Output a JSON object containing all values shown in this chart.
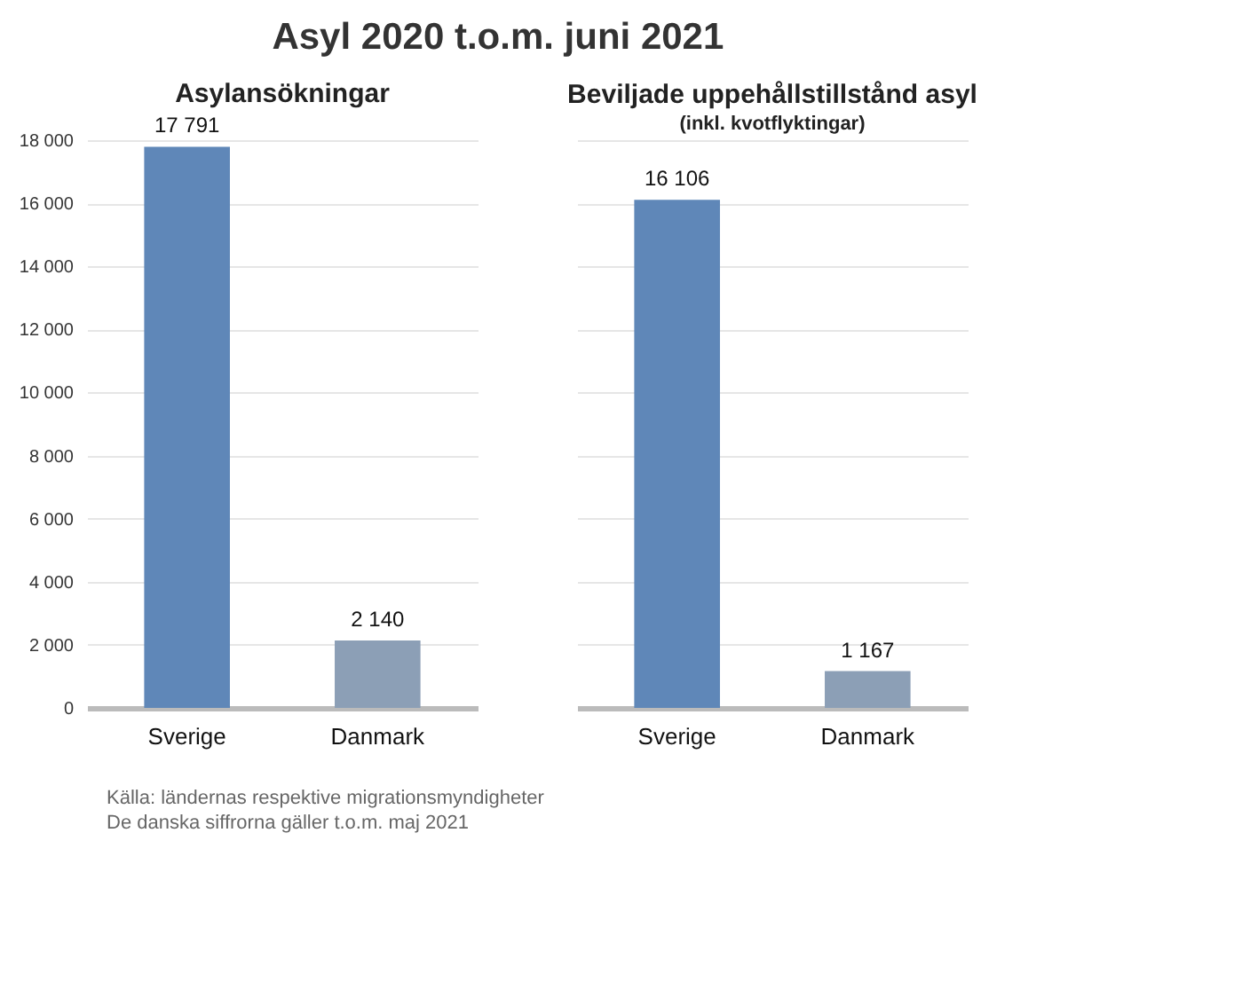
{
  "chart_data": [
    {
      "type": "bar",
      "title": "Asyl 2020 t.o.m. juni 2021",
      "subtitle": "Asylansökningar",
      "categories": [
        "Sverige",
        "Danmark"
      ],
      "values": [
        17791,
        2140
      ],
      "colors": [
        "#5f87b8",
        "#8c9fb6"
      ],
      "value_labels": [
        "17 791",
        "2 140"
      ],
      "ylim": [
        0,
        18000
      ],
      "yticks": [
        {
          "value": 0,
          "label": "0"
        },
        {
          "value": 2000,
          "label": "2 000"
        },
        {
          "value": 4000,
          "label": "4 000"
        },
        {
          "value": 6000,
          "label": "6 000"
        },
        {
          "value": 8000,
          "label": "8 000"
        },
        {
          "value": 10000,
          "label": "10 000"
        },
        {
          "value": 12000,
          "label": "12 000"
        },
        {
          "value": 14000,
          "label": "14 000"
        },
        {
          "value": 16000,
          "label": "16 000"
        },
        {
          "value": 18000,
          "label": "18 000"
        }
      ],
      "grid": "y",
      "annotations": [
        "Källa: ländernas respektive migrationsmyndigheter",
        "De danska siffrorna gäller t.o.m. maj 2021"
      ]
    },
    {
      "type": "bar",
      "title": "Beviljade uppehållstillstånd asyl",
      "subtitle": "(inkl. kvotflyktingar)",
      "categories": [
        "Sverige",
        "Danmark"
      ],
      "values": [
        16106,
        1167
      ],
      "colors": [
        "#5f87b8",
        "#8c9fb6"
      ],
      "value_labels": [
        "16 106",
        "1 167"
      ],
      "ylim": [
        0,
        18000
      ],
      "yticks": [
        0,
        2000,
        4000,
        6000,
        8000,
        10000,
        12000,
        14000,
        16000,
        18000
      ],
      "grid": "y",
      "tick_labels": "x"
    }
  ]
}
